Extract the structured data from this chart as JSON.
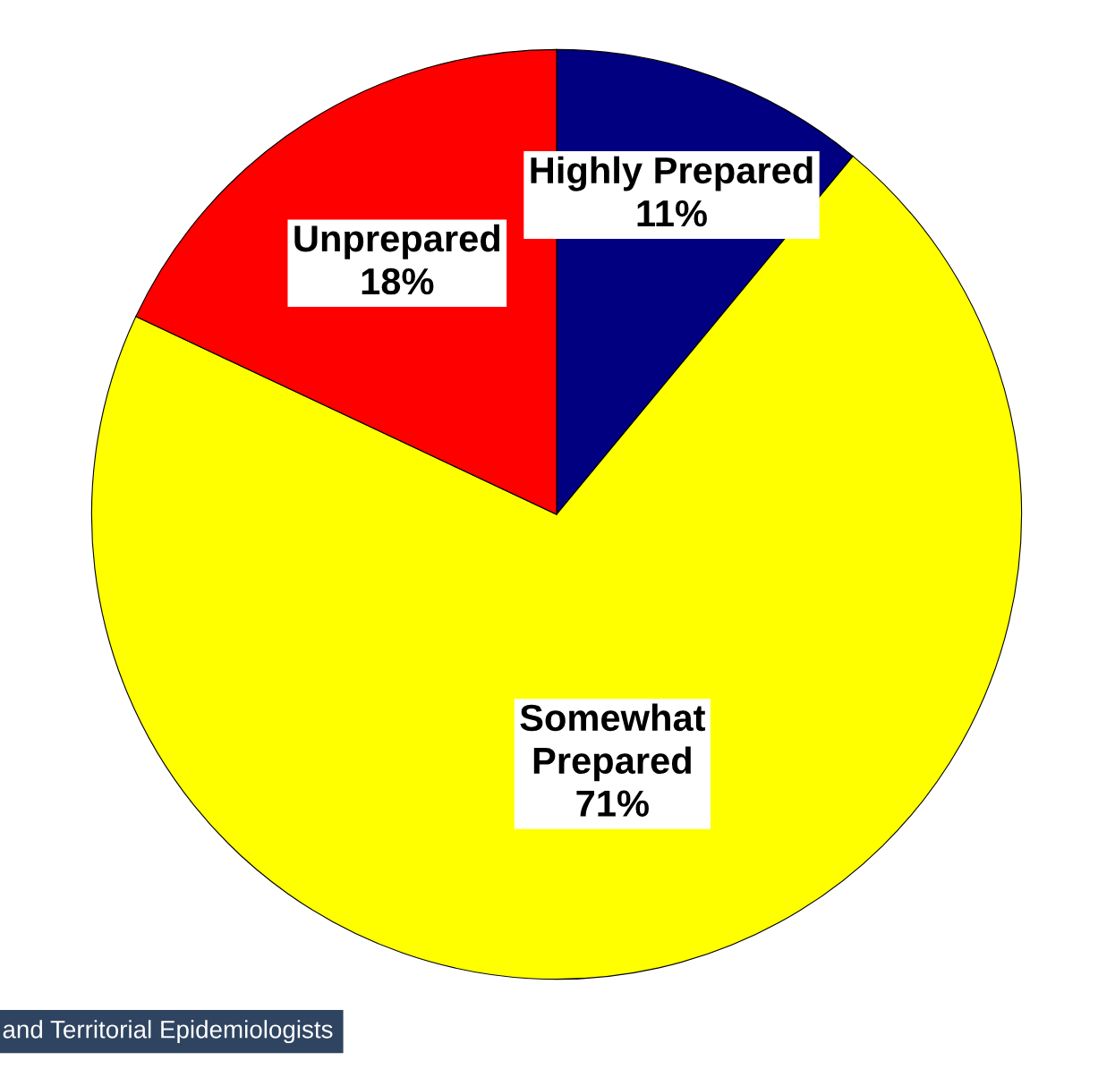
{
  "chart_data": {
    "type": "pie",
    "categories": [
      "Highly Prepared",
      "Somewhat Prepared",
      "Unprepared"
    ],
    "values": [
      11,
      71,
      18
    ],
    "value_labels": [
      "11%",
      "71%",
      "18%"
    ],
    "colors": [
      "#000080",
      "#ffff00",
      "#ff0000"
    ],
    "annotations": [
      "and Territorial Epidemiologists"
    ]
  }
}
